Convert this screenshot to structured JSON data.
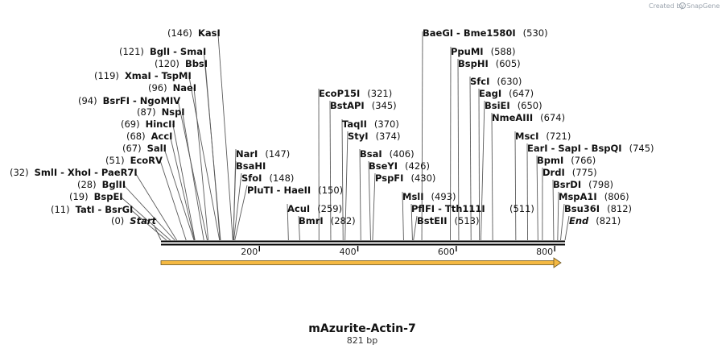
{
  "credit": {
    "text": "Created by",
    "brand": "SnapGene"
  },
  "plasmid": {
    "name": "mAzurite-Actin-7",
    "size_label": "821 bp",
    "length": 821
  },
  "scale": {
    "ticks": [
      {
        "label": "200",
        "pos": 200
      },
      {
        "label": "400",
        "pos": 400
      },
      {
        "label": "600",
        "pos": 600
      },
      {
        "label": "800",
        "pos": 800
      }
    ]
  },
  "feature": {
    "start": 0,
    "end": 821,
    "color": "#f5b942",
    "direction": "forward"
  },
  "sites": [
    {
      "id": "start",
      "pos": "(0)",
      "name": "Start",
      "italic": true,
      "loc": 0
    },
    {
      "id": "tati",
      "pos": "(11)",
      "name": "TatI  -  BsrGI",
      "loc": 11
    },
    {
      "id": "bspei",
      "pos": "(19)",
      "name": "BspEI",
      "loc": 19
    },
    {
      "id": "bglii",
      "pos": "(28)",
      "name": "BglII",
      "loc": 28
    },
    {
      "id": "smli",
      "pos": "(32)",
      "name": "SmlI  -  XhoI  -  PaeR7I",
      "loc": 32
    },
    {
      "id": "ecorv",
      "pos": "(51)",
      "name": "EcoRV",
      "loc": 51
    },
    {
      "id": "sali",
      "pos": "(67)",
      "name": "SalI",
      "loc": 67
    },
    {
      "id": "acci",
      "pos": "(68)",
      "name": "AccI",
      "loc": 68
    },
    {
      "id": "hincii",
      "pos": "(69)",
      "name": "HincII",
      "loc": 69
    },
    {
      "id": "nspi",
      "pos": "(87)",
      "name": "NspI",
      "loc": 87
    },
    {
      "id": "bsrfi",
      "pos": "(94)",
      "name": "BsrFI  -  NgoMIV",
      "loc": 94
    },
    {
      "id": "naei",
      "pos": "(96)",
      "name": "NaeI",
      "loc": 96
    },
    {
      "id": "xmai",
      "pos": "(119)",
      "name": "XmaI  -  TspMI",
      "loc": 119
    },
    {
      "id": "bbsi",
      "pos": "(120)",
      "name": "BbsI",
      "loc": 120
    },
    {
      "id": "bgli",
      "pos": "(121)",
      "name": "BglI  -  SmaI",
      "loc": 121
    },
    {
      "id": "kasi",
      "pos": "(146)",
      "name": "KasI",
      "loc": 146
    },
    {
      "id": "nari",
      "pos": "(147)",
      "name": "NarI",
      "loc": 147
    },
    {
      "id": "bsahi",
      "pos": "",
      "name": "BsaHI",
      "loc": 147
    },
    {
      "id": "sfoi",
      "pos": "(148)",
      "name": "SfoI",
      "loc": 148
    },
    {
      "id": "pluti",
      "pos": "(150)",
      "name": "PluTI  -  HaeII",
      "loc": 150
    },
    {
      "id": "acui",
      "pos": "(259)",
      "name": "AcuI",
      "loc": 259
    },
    {
      "id": "bmri",
      "pos": "(282)",
      "name": "BmrI",
      "loc": 282
    },
    {
      "id": "ecop15i",
      "pos": "(321)",
      "name": "EcoP15I",
      "loc": 321
    },
    {
      "id": "bstapi",
      "pos": "(345)",
      "name": "BstAPI",
      "loc": 345
    },
    {
      "id": "taqii",
      "pos": "(370)",
      "name": "TaqII",
      "loc": 370
    },
    {
      "id": "styi",
      "pos": "(374)",
      "name": "StyI",
      "loc": 374
    },
    {
      "id": "bsai",
      "pos": "(406)",
      "name": "BsaI",
      "loc": 406
    },
    {
      "id": "bseyi",
      "pos": "(426)",
      "name": "BseYI",
      "loc": 426
    },
    {
      "id": "pspfi",
      "pos": "(430)",
      "name": "PspFI",
      "loc": 430
    },
    {
      "id": "msli",
      "pos": "(493)",
      "name": "MslI",
      "loc": 493
    },
    {
      "id": "pflfi",
      "pos": "",
      "name": "PflFI  -  Tth111I",
      "loc": 511
    },
    {
      "id": "bsteii",
      "pos": "(513)",
      "name": "BstEII",
      "loc": 513
    },
    {
      "id": "baegi",
      "pos": "(530)",
      "name": "BaeGI  -  Bme1580I",
      "loc": 530
    },
    {
      "id": "ppumi",
      "pos": "(588)",
      "name": "PpuMI",
      "loc": 588
    },
    {
      "id": "bsphi",
      "pos": "(605)",
      "name": "BspHI",
      "loc": 605
    },
    {
      "id": "sfci",
      "pos": "(630)",
      "name": "SfcI",
      "loc": 630
    },
    {
      "id": "eagi",
      "pos": "(647)",
      "name": "EagI",
      "loc": 647
    },
    {
      "id": "bsiei",
      "pos": "(650)",
      "name": "BsiEI",
      "loc": 650
    },
    {
      "id": "nmeaiii",
      "pos": "(674)",
      "name": "NmeAIII",
      "loc": 674
    },
    {
      "id": "msci",
      "pos": "(721)",
      "name": "MscI",
      "loc": 721
    },
    {
      "id": "eari",
      "pos": "(745)",
      "name": "EarI  -  SapI  -  BspQI",
      "loc": 745
    },
    {
      "id": "bpmi",
      "pos": "(766)",
      "name": "BpmI",
      "loc": 766
    },
    {
      "id": "drdi",
      "pos": "(775)",
      "name": "DrdI",
      "loc": 775
    },
    {
      "id": "bsrdi",
      "pos": "(798)",
      "name": "BsrDI",
      "loc": 798
    },
    {
      "id": "mspa1i",
      "pos": "(806)",
      "name": "MspA1I",
      "loc": 806
    },
    {
      "id": "bsu36i",
      "pos": "(812)",
      "name": "Bsu36I",
      "loc": 812
    },
    {
      "id": "end",
      "pos": "(821)",
      "name": "End",
      "italic": true,
      "loc": 821
    },
    {
      "id": "pos511",
      "pos": "(511)",
      "name": "",
      "loc": 511
    }
  ]
}
